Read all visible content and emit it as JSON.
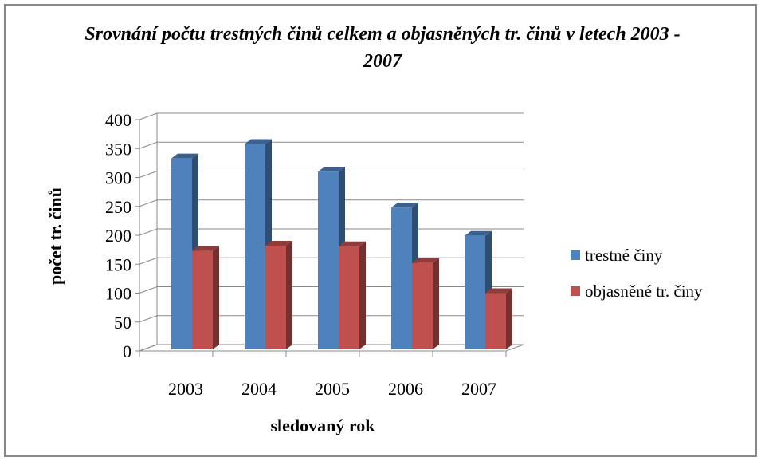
{
  "chart_data": {
    "type": "bar3d",
    "title": "Srovnání počtu trestných činů celkem a objasněných tr. činů v letech 2003 - 2007",
    "x_label": "sledovaný rok",
    "y_label": "počet tr. činů",
    "categories": [
      "2003",
      "2004",
      "2005",
      "2006",
      "2007"
    ],
    "series": [
      {
        "name": "trestné činy",
        "color": "#4f81bd",
        "values": [
          333,
          358,
          310,
          248,
          199
        ]
      },
      {
        "name": "objasněné tr. činy",
        "color": "#c0504d",
        "values": [
          173,
          182,
          181,
          152,
          100
        ]
      }
    ],
    "ylim": [
      0,
      400
    ],
    "yticks": [
      0,
      50,
      100,
      150,
      200,
      250,
      300,
      350,
      400
    ],
    "grid": true,
    "legend": "right"
  }
}
